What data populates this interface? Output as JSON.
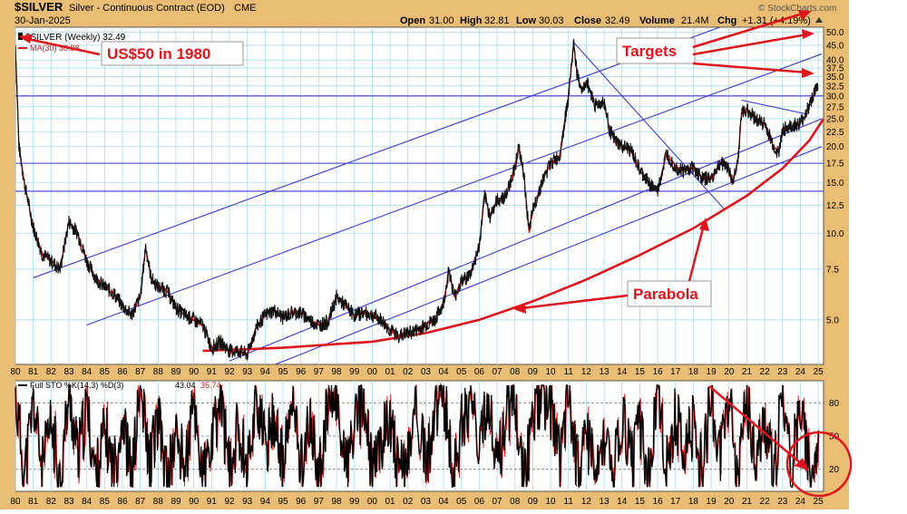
{
  "header": {
    "symbol": "$SILVER",
    "description": "Silver - Continuous Contract (EOD)",
    "exchange": "CME",
    "date": "30-Jan-2025",
    "brand": "© StockCharts.com",
    "open_label": "Open",
    "open": "31.00",
    "high_label": "High",
    "high": "32.81",
    "low_label": "Low",
    "low": "30.03",
    "close_label": "Close",
    "close": "32.49",
    "volume_label": "Volume",
    "volume": "21.4M",
    "chg_label": "Chg",
    "chg": "+1.31 (+4.19%)"
  },
  "legend": {
    "price": "$SILVER (Weekly) 32.49",
    "ma": "MA(30) 30.98",
    "sto_prefix": "Full STO %K(14,3) %D(3)",
    "sto_k": "43.04",
    "sto_d": "35.74"
  },
  "annotations": {
    "us50": "US$50 in 1980",
    "targets": "Targets",
    "parabola": "Parabola"
  },
  "colors": {
    "background": "#e9bd73",
    "plot": "#ffffff",
    "grid": "#a7dcef",
    "price": "#111111",
    "ma": "#cc1a1a",
    "trend": "#3a3ad6",
    "annotation": "#e0151b"
  },
  "chart_data": [
    {
      "type": "line",
      "scale": "log",
      "series": [
        {
          "name": "$SILVER (Weekly)",
          "x": [
            1980.0,
            1980.2,
            1980.5,
            1981.0,
            1981.5,
            1982.0,
            1982.5,
            1983.0,
            1983.5,
            1984.0,
            1984.5,
            1985.0,
            1985.5,
            1986.0,
            1986.5,
            1987.0,
            1987.3,
            1987.6,
            1988.0,
            1988.5,
            1989.0,
            1989.5,
            1990.0,
            1990.5,
            1991.0,
            1991.5,
            1992.0,
            1992.5,
            1993.0,
            1993.5,
            1994.0,
            1994.5,
            1995.0,
            1995.5,
            1996.0,
            1996.5,
            1997.0,
            1997.5,
            1998.0,
            1998.5,
            1999.0,
            1999.5,
            2000.0,
            2000.5,
            2001.0,
            2001.5,
            2002.0,
            2002.5,
            2003.0,
            2003.5,
            2004.0,
            2004.3,
            2004.6,
            2005.0,
            2005.5,
            2006.0,
            2006.3,
            2006.6,
            2007.0,
            2007.5,
            2008.0,
            2008.2,
            2008.5,
            2008.8,
            2009.0,
            2009.5,
            2010.0,
            2010.5,
            2011.0,
            2011.3,
            2011.5,
            2011.8,
            2012.0,
            2012.5,
            2013.0,
            2013.3,
            2013.6,
            2014.0,
            2014.5,
            2015.0,
            2015.5,
            2016.0,
            2016.5,
            2017.0,
            2017.5,
            2018.0,
            2018.5,
            2019.0,
            2019.5,
            2019.9,
            2020.2,
            2020.5,
            2020.7,
            2021.0,
            2021.5,
            2022.0,
            2022.5,
            2022.8,
            2023.0,
            2023.5,
            2024.0,
            2024.3,
            2024.6,
            2024.8,
            2025.0
          ],
          "values": [
            45.0,
            20.0,
            15.0,
            10.5,
            8.5,
            8.0,
            7.5,
            11.0,
            10.0,
            8.0,
            7.0,
            6.5,
            6.2,
            5.6,
            5.2,
            6.0,
            9.0,
            7.0,
            6.5,
            6.3,
            5.5,
            5.2,
            5.0,
            4.8,
            4.0,
            4.2,
            3.9,
            3.9,
            3.8,
            4.7,
            5.2,
            5.4,
            5.1,
            5.3,
            5.3,
            5.0,
            4.8,
            4.9,
            6.0,
            5.6,
            5.2,
            5.3,
            5.2,
            5.0,
            4.6,
            4.4,
            4.5,
            4.6,
            4.8,
            5.0,
            5.7,
            7.5,
            6.0,
            6.8,
            7.2,
            9.0,
            13.5,
            11.5,
            13.0,
            13.5,
            17.0,
            20.0,
            16.0,
            10.0,
            12.0,
            15.0,
            17.5,
            18.5,
            30.0,
            46.0,
            35.0,
            31.0,
            34.0,
            28.0,
            28.5,
            23.0,
            21.0,
            20.0,
            19.5,
            16.5,
            15.0,
            14.0,
            19.0,
            17.0,
            16.5,
            17.0,
            15.5,
            15.5,
            17.5,
            17.3,
            15.0,
            18.0,
            26.0,
            27.0,
            25.0,
            24.0,
            20.0,
            19.0,
            23.0,
            23.5,
            24.0,
            26.0,
            29.0,
            31.0,
            32.49
          ]
        },
        {
          "name": "MA(30)",
          "values": [
            30.98
          ]
        }
      ],
      "xlabel": "",
      "ylabel": "",
      "x_tick_labels": [
        "80",
        "81",
        "82",
        "83",
        "84",
        "85",
        "86",
        "87",
        "88",
        "89",
        "90",
        "91",
        "92",
        "93",
        "94",
        "95",
        "96",
        "97",
        "98",
        "99",
        "00",
        "01",
        "02",
        "03",
        "04",
        "05",
        "06",
        "07",
        "08",
        "09",
        "10",
        "11",
        "12",
        "13",
        "14",
        "15",
        "16",
        "17",
        "18",
        "19",
        "20",
        "21",
        "22",
        "23",
        "24",
        "25"
      ],
      "y_tick_labels": [
        "5.0",
        "7.5",
        "10.0",
        "12.5",
        "15.0",
        "17.5",
        "20.0",
        "22.5",
        "25.0",
        "27.5",
        "30.0",
        "32.5",
        "35.0",
        "37.5",
        "40.0",
        "45.0",
        "50.0"
      ],
      "xlim": [
        1980,
        2025.3
      ],
      "ylim": [
        3.5,
        52
      ],
      "grid": true,
      "legend": "top-left",
      "horizontal_lines": [
        30.0,
        17.5,
        14.0
      ],
      "trend_lines": [
        {
          "x": [
            1981.0,
            2025.2
          ],
          "y": [
            7.0,
            70.0
          ]
        },
        {
          "x": [
            1984.0,
            2025.2
          ],
          "y": [
            4.8,
            42.0
          ]
        },
        {
          "x": [
            1992.0,
            2025.2
          ],
          "y": [
            3.6,
            25.0
          ]
        },
        {
          "x": [
            1993.0,
            2025.2
          ],
          "y": [
            3.2,
            20.0
          ]
        },
        {
          "x": [
            2011.3,
            2019.8
          ],
          "y": [
            46.0,
            12.0
          ]
        },
        {
          "x": [
            2020.7,
            2024.3
          ],
          "y": [
            29.0,
            26.0
          ]
        }
      ],
      "parabola": {
        "x": [
          1990.5,
          1995.0,
          2000.0,
          2003.0,
          2006.0,
          2009.0,
          2012.0,
          2015.0,
          2018.0,
          2021.0,
          2023.0,
          2024.5,
          2025.3
        ],
        "y": [
          3.9,
          4.0,
          4.2,
          4.5,
          5.0,
          5.8,
          6.9,
          8.4,
          10.4,
          13.5,
          16.8,
          21.0,
          25.0
        ]
      }
    },
    {
      "type": "line",
      "series": [
        {
          "name": "Full STO %K(14,3)",
          "x": [
            1980.0,
            1980.5,
            1981.0,
            1981.5,
            1982.0,
            1982.5,
            1983.0,
            1983.5,
            1984.0,
            1984.5,
            1985.0,
            1985.5,
            1986.0,
            1986.5,
            1987.0,
            1987.5,
            1988.0,
            1988.5,
            1989.0,
            1989.5,
            1990.0,
            1990.5,
            1991.0,
            1991.5,
            1992.0,
            1992.5,
            1993.0,
            1993.5,
            1994.0,
            1994.5,
            1995.0,
            1995.5,
            1996.0,
            1996.5,
            1997.0,
            1997.5,
            1998.0,
            1998.5,
            1999.0,
            1999.5,
            2000.0,
            2000.5,
            2001.0,
            2001.5,
            2002.0,
            2002.5,
            2003.0,
            2003.5,
            2004.0,
            2004.5,
            2005.0,
            2005.5,
            2006.0,
            2006.5,
            2007.0,
            2007.5,
            2008.0,
            2008.5,
            2009.0,
            2009.5,
            2010.0,
            2010.5,
            2011.0,
            2011.5,
            2012.0,
            2012.5,
            2013.0,
            2013.5,
            2014.0,
            2014.5,
            2015.0,
            2015.5,
            2016.0,
            2016.5,
            2017.0,
            2017.5,
            2018.0,
            2018.5,
            2019.0,
            2019.5,
            2020.0,
            2020.5,
            2021.0,
            2021.5,
            2022.0,
            2022.5,
            2023.0,
            2023.5,
            2024.0,
            2024.5,
            2025.0
          ],
          "values": [
            85,
            15,
            80,
            20,
            60,
            10,
            90,
            30,
            75,
            12,
            55,
            18,
            70,
            10,
            92,
            25,
            65,
            8,
            50,
            22,
            78,
            12,
            40,
            85,
            15,
            60,
            20,
            88,
            35,
            70,
            18,
            82,
            25,
            60,
            12,
            75,
            88,
            20,
            55,
            80,
            15,
            45,
            70,
            10,
            35,
            78,
            22,
            65,
            90,
            15,
            60,
            85,
            30,
            88,
            20,
            70,
            85,
            10,
            65,
            90,
            75,
            30,
            95,
            20,
            50,
            15,
            40,
            10,
            70,
            25,
            60,
            12,
            85,
            20,
            70,
            35,
            60,
            15,
            88,
            30,
            80,
            10,
            85,
            25,
            60,
            12,
            90,
            20,
            85,
            15,
            43.04
          ]
        }
      ],
      "xlabel": "",
      "ylabel": "",
      "y_tick_labels": [
        "20",
        "50",
        "80"
      ],
      "ylim": [
        0,
        100
      ],
      "grid": true,
      "legend": "top-left"
    }
  ]
}
